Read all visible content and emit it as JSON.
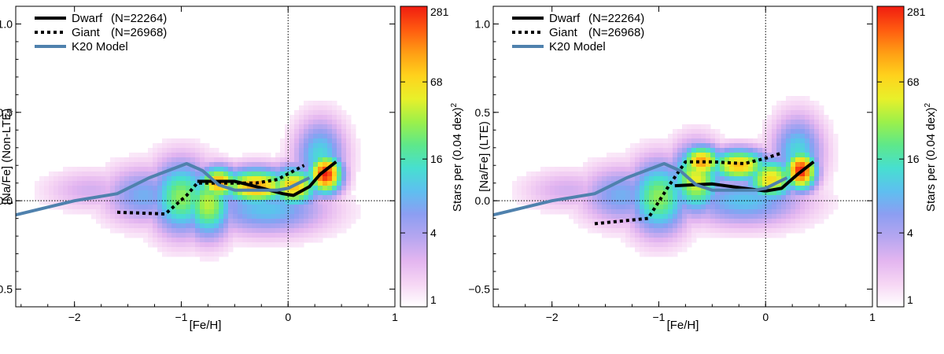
{
  "figure": {
    "colormap": [
      "#ffffff",
      "#f6d6f4",
      "#e3b5f0",
      "#b6a6f0",
      "#8c9ef2",
      "#5ebff0",
      "#47dfd0",
      "#5ee88a",
      "#9cf04a",
      "#e8f02a",
      "#ffd21c",
      "#ff9d14",
      "#ff5a10",
      "#f01c10"
    ]
  },
  "chart_data": [
    {
      "type": "heatmap",
      "panel": "left",
      "xlabel": "[Fe/H]",
      "ylabel": "[Na/Fe] (Non-LTE)",
      "xlim": [
        -2.55,
        1.0
      ],
      "ylim": [
        -0.6,
        1.1
      ],
      "xticks": [
        {
          "v": -2,
          "label": "−2"
        },
        {
          "v": -1,
          "label": "−1"
        },
        {
          "v": 0,
          "label": "0"
        },
        {
          "v": 1,
          "label": "1"
        }
      ],
      "yticks": [
        {
          "v": -0.5,
          "label": "−0.5"
        },
        {
          "v": 0.0,
          "label": "0.0"
        },
        {
          "v": 0.5,
          "label": "0.5"
        },
        {
          "v": 1.0,
          "label": "1.0"
        }
      ],
      "reference_lines": {
        "x": 0,
        "y": 0
      },
      "colorbar": {
        "label": "Stars per (0.04 dex)",
        "label_sup": "2",
        "scale": "log",
        "range": [
          1,
          281
        ],
        "ticks": [
          "1",
          "4",
          "16",
          "68",
          "281"
        ],
        "tick_values": [
          1,
          4,
          16,
          68,
          281
        ]
      },
      "legend": [
        {
          "label": "Dwarf",
          "count": "(N=22264)",
          "style": "solid",
          "color": "#000000"
        },
        {
          "label": "Giant",
          "count": "(N=26968)",
          "style": "dotted",
          "color": "#000000"
        },
        {
          "label": "K20 Model",
          "count": "",
          "style": "solid",
          "color": "#4f81ad"
        }
      ],
      "density_blobs": [
        {
          "fe": -1.85,
          "na": 0.06,
          "w": 0.45,
          "h": 0.12,
          "amp": 0.18
        },
        {
          "fe": -1.35,
          "na": 0.03,
          "w": 0.4,
          "h": 0.17,
          "amp": 0.35
        },
        {
          "fe": -1.0,
          "na": 0.02,
          "w": 0.3,
          "h": 0.22,
          "amp": 0.6
        },
        {
          "fe": -0.75,
          "na": -0.02,
          "w": 0.25,
          "h": 0.2,
          "amp": 0.65
        },
        {
          "fe": -0.65,
          "na": 0.1,
          "w": 0.2,
          "h": 0.1,
          "amp": 0.85
        },
        {
          "fe": -0.3,
          "na": 0.08,
          "w": 0.35,
          "h": 0.11,
          "amp": 0.85
        },
        {
          "fe": 0.05,
          "na": 0.08,
          "w": 0.25,
          "h": 0.12,
          "amp": 0.8
        },
        {
          "fe": 0.35,
          "na": 0.15,
          "w": 0.17,
          "h": 0.12,
          "amp": 1.0
        },
        {
          "fe": 0.3,
          "na": 0.25,
          "w": 0.25,
          "h": 0.22,
          "amp": 0.45
        },
        {
          "fe": -0.2,
          "na": -0.05,
          "w": 0.6,
          "h": 0.15,
          "amp": 0.4
        }
      ],
      "series": [
        {
          "name": "Dwarf",
          "style": "solid",
          "color": "#000000",
          "x": [
            -0.85,
            -0.5,
            -0.3,
            -0.05,
            0.05,
            0.2,
            0.3,
            0.45
          ],
          "y": [
            0.11,
            0.11,
            0.08,
            0.04,
            0.03,
            0.08,
            0.15,
            0.22
          ]
        },
        {
          "name": "Giant",
          "style": "dotted",
          "color": "#000000",
          "x": [
            -1.6,
            -1.15,
            -0.95,
            -0.85,
            -0.5,
            -0.3,
            -0.1,
            0.15
          ],
          "y": [
            -0.065,
            -0.075,
            0.03,
            0.1,
            0.1,
            0.1,
            0.12,
            0.2
          ]
        },
        {
          "name": "K20 Model",
          "style": "solid",
          "color": "#4f81ad",
          "x": [
            -2.55,
            -2.0,
            -1.6,
            -1.3,
            -0.95,
            -0.8,
            -0.65,
            -0.5,
            -0.3,
            -0.1,
            0.0,
            0.1,
            0.2
          ],
          "y": [
            -0.08,
            0.0,
            0.04,
            0.13,
            0.21,
            0.17,
            0.09,
            0.06,
            0.06,
            0.06,
            0.07,
            0.1,
            0.13
          ]
        }
      ]
    },
    {
      "type": "heatmap",
      "panel": "right",
      "xlabel": "[Fe/H]",
      "ylabel": "[Na/Fe] (LTE)",
      "xlim": [
        -2.55,
        1.0
      ],
      "ylim": [
        -0.6,
        1.1
      ],
      "xticks": [
        {
          "v": -2,
          "label": "−2"
        },
        {
          "v": -1,
          "label": "−1"
        },
        {
          "v": 0,
          "label": "0"
        },
        {
          "v": 1,
          "label": "1"
        }
      ],
      "yticks": [
        {
          "v": -0.5,
          "label": "−0.5"
        },
        {
          "v": 0.0,
          "label": "0.0"
        },
        {
          "v": 0.5,
          "label": "0.5"
        },
        {
          "v": 1.0,
          "label": "1.0"
        }
      ],
      "reference_lines": {
        "x": 0,
        "y": 0
      },
      "colorbar": {
        "label": "Stars per (0.04 dex)",
        "label_sup": "2",
        "scale": "log",
        "range": [
          1,
          281
        ],
        "ticks": [
          "1",
          "4",
          "16",
          "68",
          "281"
        ],
        "tick_values": [
          1,
          4,
          16,
          68,
          281
        ]
      },
      "legend": [
        {
          "label": "Dwarf",
          "count": "(N=22264)",
          "style": "solid",
          "color": "#000000"
        },
        {
          "label": "Giant",
          "count": "(N=26968)",
          "style": "dotted",
          "color": "#000000"
        },
        {
          "label": "K20 Model",
          "count": "",
          "style": "solid",
          "color": "#4f81ad"
        }
      ],
      "density_blobs": [
        {
          "fe": -1.85,
          "na": 0.06,
          "w": 0.45,
          "h": 0.12,
          "amp": 0.18
        },
        {
          "fe": -1.35,
          "na": 0.03,
          "w": 0.4,
          "h": 0.17,
          "amp": 0.35
        },
        {
          "fe": -1.0,
          "na": 0.02,
          "w": 0.3,
          "h": 0.22,
          "amp": 0.6
        },
        {
          "fe": -0.65,
          "na": 0.12,
          "w": 0.25,
          "h": 0.2,
          "amp": 0.7
        },
        {
          "fe": -0.6,
          "na": 0.22,
          "w": 0.2,
          "h": 0.1,
          "amp": 0.85
        },
        {
          "fe": -0.25,
          "na": 0.2,
          "w": 0.3,
          "h": 0.1,
          "amp": 0.8
        },
        {
          "fe": 0.05,
          "na": 0.12,
          "w": 0.25,
          "h": 0.13,
          "amp": 0.75
        },
        {
          "fe": 0.33,
          "na": 0.17,
          "w": 0.16,
          "h": 0.12,
          "amp": 1.0
        },
        {
          "fe": 0.3,
          "na": 0.27,
          "w": 0.25,
          "h": 0.22,
          "amp": 0.45
        },
        {
          "fe": -0.2,
          "na": 0.0,
          "w": 0.6,
          "h": 0.15,
          "amp": 0.4
        }
      ],
      "series": [
        {
          "name": "Dwarf",
          "style": "solid",
          "color": "#000000",
          "x": [
            -0.85,
            -0.5,
            -0.2,
            0.0,
            0.15,
            0.3,
            0.45
          ],
          "y": [
            0.085,
            0.095,
            0.07,
            0.055,
            0.07,
            0.15,
            0.22
          ]
        },
        {
          "name": "Giant",
          "style": "dotted",
          "color": "#000000",
          "x": [
            -1.6,
            -1.1,
            -0.9,
            -0.75,
            -0.5,
            -0.2,
            0.0,
            0.15
          ],
          "y": [
            -0.13,
            -0.1,
            0.09,
            0.22,
            0.22,
            0.21,
            0.24,
            0.27
          ]
        },
        {
          "name": "K20 Model",
          "style": "solid",
          "color": "#4f81ad",
          "x": [
            -2.55,
            -2.0,
            -1.6,
            -1.3,
            -0.95,
            -0.8,
            -0.65,
            -0.5,
            -0.3,
            -0.1,
            0.0,
            0.1,
            0.2
          ],
          "y": [
            -0.08,
            0.0,
            0.04,
            0.13,
            0.21,
            0.17,
            0.09,
            0.06,
            0.06,
            0.06,
            0.07,
            0.1,
            0.13
          ]
        }
      ]
    }
  ]
}
